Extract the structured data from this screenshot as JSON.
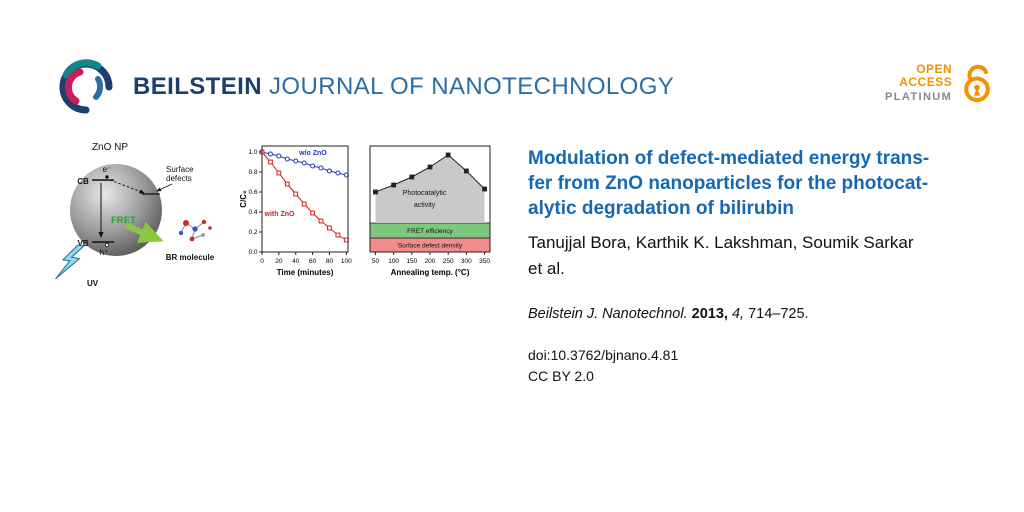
{
  "header": {
    "brand_bold": "BEILSTEIN",
    "brand_rest": " JOURNAL OF NANOTECHNOLOGY",
    "open_access": {
      "open": "OPEN",
      "access": "ACCESS",
      "platinum": "PLATINUM"
    }
  },
  "colors": {
    "brand_navy": "#1c3f6e",
    "brand_blue": "#2e6da4",
    "title_blue": "#1569b3",
    "oa_orange": "#f39200",
    "platinum_gray": "#878787",
    "fret_green": "#8dc63f",
    "uv_cyan": "#8fd9f2"
  },
  "diagram": {
    "np_label": "ZnO NP",
    "cb": "CB",
    "vb": "VB",
    "electron": "e⁻",
    "hole": "h⁺",
    "surface_defects_line1": "Surface",
    "surface_defects_line2": "defects",
    "fret": "FRET",
    "br_molecule": "BR molecule",
    "uv": "UV"
  },
  "chart_data": [
    {
      "type": "line",
      "title": "",
      "xlabel": "Time (minutes)",
      "ylabel": "C/C₀",
      "xlim": [
        0,
        102
      ],
      "ylim": [
        0,
        1.06
      ],
      "xticks": [
        0,
        20,
        40,
        60,
        80,
        100
      ],
      "yticks": [
        0,
        0.2,
        0.4,
        0.6,
        0.8,
        1
      ],
      "ytick_decimals": 1,
      "series": [
        {
          "name": "w/o ZnO",
          "color": "#2538b8",
          "marker": "circle",
          "x": [
            0,
            10,
            20,
            30,
            40,
            50,
            60,
            70,
            80,
            90,
            100
          ],
          "y": [
            1.0,
            0.98,
            0.96,
            0.93,
            0.91,
            0.89,
            0.86,
            0.84,
            0.81,
            0.79,
            0.77
          ]
        },
        {
          "name": "with ZnO",
          "color": "#d01f1f",
          "marker": "square",
          "x": [
            0,
            10,
            20,
            30,
            40,
            50,
            60,
            70,
            80,
            90,
            100
          ],
          "y": [
            1.0,
            0.9,
            0.79,
            0.68,
            0.58,
            0.48,
            0.39,
            0.31,
            0.24,
            0.17,
            0.12
          ]
        }
      ],
      "annotations": [
        {
          "text": "w/o ZnO",
          "x": 44,
          "y": 0.97,
          "color": "#2538b8",
          "bold": true
        },
        {
          "text": "with ZnO",
          "x": 3,
          "y": 0.36,
          "color": "#d01f1f",
          "bold": true
        }
      ]
    },
    {
      "type": "area",
      "title": "",
      "xlabel": "Annealing temp. (°C)",
      "ylabel": "",
      "xlim": [
        35,
        365
      ],
      "ylim": [
        0,
        1.06
      ],
      "xticks": [
        50,
        100,
        150,
        200,
        250,
        300,
        350
      ],
      "bands": [
        {
          "label": "Surface defect density",
          "color": "#f28b8b",
          "range": [
            0,
            0.14
          ]
        },
        {
          "label": "FRET efficiency",
          "color": "#7dc87d",
          "range": [
            0.14,
            0.29
          ]
        }
      ],
      "series": [
        {
          "name": "Photocatalytic activity",
          "color": "#222222",
          "marker": "square",
          "marker_fill": "#222222",
          "fill": "#c9c9c9",
          "fill_to": 0.29,
          "x": [
            50,
            100,
            150,
            200,
            250,
            300,
            350
          ],
          "y": [
            0.6,
            0.67,
            0.75,
            0.85,
            0.97,
            0.81,
            0.63
          ]
        }
      ],
      "annotations": [
        {
          "text": "Photocatalytic",
          "x": 185,
          "y": 0.57,
          "anchor": "middle"
        },
        {
          "text": "activity",
          "x": 185,
          "y": 0.45,
          "anchor": "middle"
        }
      ]
    }
  ],
  "article": {
    "title_lines": [
      "Modulation of defect-mediated energy trans-",
      "fer from ZnO nanoparticles for the photocat-",
      "alytic degradation of bilirubin"
    ],
    "authors_line1": "Tanujjal Bora, Karthik K. Lakshman, Soumik Sarkar",
    "authors_line2": "et al.",
    "citation": {
      "journal": "Beilstein J. Nanotechnol.",
      "year": "2013,",
      "volume": "4,",
      "pages": "714–725."
    },
    "doi": "doi:10.3762/bjnano.4.81",
    "license": "CC BY 2.0"
  }
}
